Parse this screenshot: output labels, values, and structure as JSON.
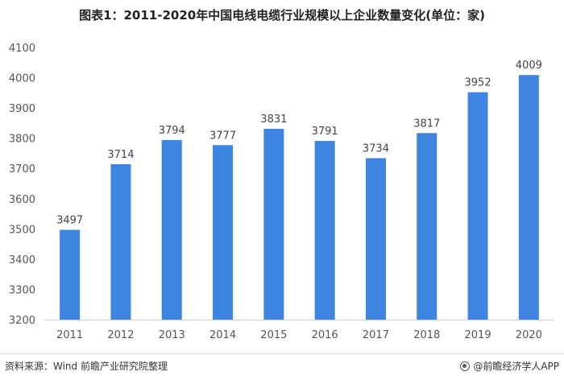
{
  "chart_data": {
    "type": "bar",
    "title": "图表1：2011-2020年中国电线电缆行业规模以上企业数量变化(单位：家)",
    "categories": [
      "2011",
      "2012",
      "2013",
      "2014",
      "2015",
      "2016",
      "2017",
      "2018",
      "2019",
      "2020"
    ],
    "values": [
      3497,
      3714,
      3794,
      3777,
      3831,
      3791,
      3734,
      3817,
      3952,
      4009
    ],
    "ylim": [
      3200,
      4100
    ],
    "yticks": [
      3200,
      3300,
      3400,
      3500,
      3600,
      3700,
      3800,
      3900,
      4000,
      4100
    ],
    "xlabel": "",
    "ylabel": "",
    "grid": false,
    "bar_color": "#3d85e0"
  },
  "footer": {
    "source": "资料来源：Wind 前瞻产业研究院整理",
    "brand": "@前瞻经济学人APP"
  }
}
